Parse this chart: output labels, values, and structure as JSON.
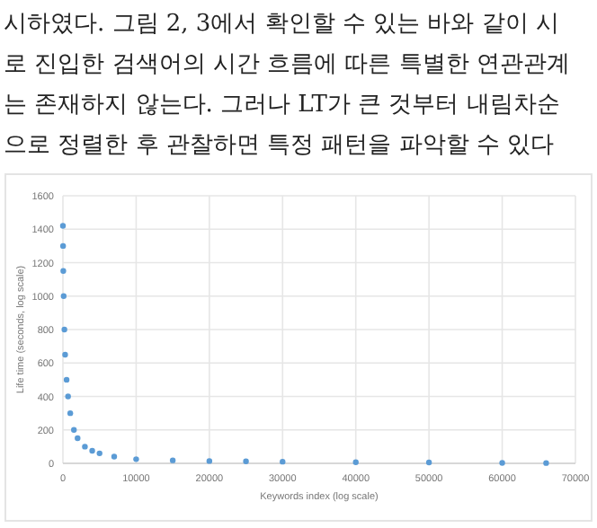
{
  "chart_data": {
    "type": "scatter",
    "annotations": [
      "시하였다. 그림 2, 3에서 확인할 수 있는 바와 같이 시",
      "로 진입한 검색어의 시간 흐름에 따른 특별한 연관관계",
      "는 존재하지 않는다. 그러나 LT가 큰 것부터 내림차순",
      "으로 정렬한 후 관찰하면 특정 패턴을 파악할 수 있다"
    ],
    "xlabel": "Keywords index (log scale)",
    "ylabel": "Life time (seconds, log scale)",
    "x": [
      0,
      20,
      50,
      100,
      200,
      300,
      500,
      700,
      1000,
      1500,
      2000,
      3000,
      4000,
      5000,
      7000,
      10000,
      15000,
      20000,
      25000,
      30000,
      40000,
      50000,
      60000,
      66000
    ],
    "values": [
      1420,
      1300,
      1150,
      1000,
      800,
      650,
      500,
      400,
      300,
      200,
      150,
      100,
      75,
      60,
      40,
      25,
      18,
      14,
      12,
      10,
      7,
      5,
      3,
      2
    ],
    "color": "#5b9bd5",
    "marker": "circle",
    "grid": true,
    "xlim": [
      0,
      70000
    ],
    "xticks": [
      0,
      10000,
      20000,
      30000,
      40000,
      50000,
      60000,
      70000
    ],
    "ylim": [
      0,
      1600
    ],
    "yticks": [
      0,
      200,
      400,
      600,
      800,
      1000,
      1200,
      1400,
      1600
    ]
  }
}
